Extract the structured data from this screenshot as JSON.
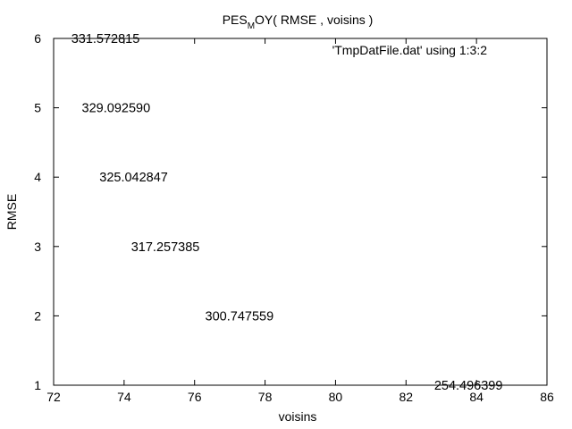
{
  "chart_data": {
    "type": "scatter",
    "title": {
      "main": "PES",
      "subscript": "M",
      "rest": "OY( RMSE , voisins )"
    },
    "xlabel": "voisins",
    "ylabel": "RMSE",
    "xlim": [
      72,
      86
    ],
    "ylim": [
      1,
      6
    ],
    "x_ticks": [
      "72",
      "74",
      "76",
      "78",
      "80",
      "82",
      "84",
      "86"
    ],
    "y_ticks": [
      "1",
      "2",
      "3",
      "4",
      "5",
      "6"
    ],
    "legend": {
      "label": "'TmpDatFile.dat' using 1:3:2",
      "placement": "top-right"
    },
    "grid": false,
    "points": [
      {
        "x": 72.5,
        "y": 6,
        "label": "331.572815"
      },
      {
        "x": 72.8,
        "y": 5,
        "label": "329.092590"
      },
      {
        "x": 73.3,
        "y": 4,
        "label": "325.042847"
      },
      {
        "x": 74.2,
        "y": 3,
        "label": "317.257385"
      },
      {
        "x": 76.3,
        "y": 2,
        "label": "300.747559"
      },
      {
        "x": 82.8,
        "y": 1,
        "label": "254.496399"
      }
    ]
  }
}
